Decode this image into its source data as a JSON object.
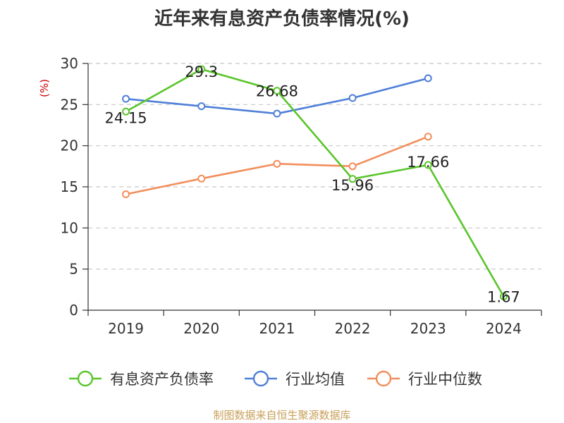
{
  "title": "近年来有息资产负债率情况(%)",
  "source": "制图数据来自恒生聚源数据库",
  "chart_data": {
    "type": "line",
    "title": "近年来有息资产负债率情况(%)",
    "ylabel": "(%)",
    "xlabel": "",
    "categories": [
      "2019",
      "2020",
      "2021",
      "2022",
      "2023",
      "2024"
    ],
    "ylim": [
      0,
      30
    ],
    "yticks": [
      0,
      5,
      10,
      15,
      20,
      25,
      30
    ],
    "grid": "horizontal dashed",
    "legend_position": "bottom",
    "series": [
      {
        "name": "有息资产负债率",
        "color": "#5ac52a",
        "values": [
          24.15,
          29.3,
          26.68,
          15.96,
          17.66,
          1.67
        ],
        "labels": [
          "24.15",
          "29.3",
          "26.68",
          "15.96",
          "17.66",
          "1.67"
        ]
      },
      {
        "name": "行业均值",
        "color": "#4f7fd8",
        "values": [
          25.7,
          24.8,
          23.9,
          25.8,
          28.2,
          null
        ]
      },
      {
        "name": "行业中位数",
        "color": "#f28e5b",
        "values": [
          14.1,
          16.0,
          17.8,
          17.5,
          21.1,
          null
        ]
      }
    ]
  }
}
